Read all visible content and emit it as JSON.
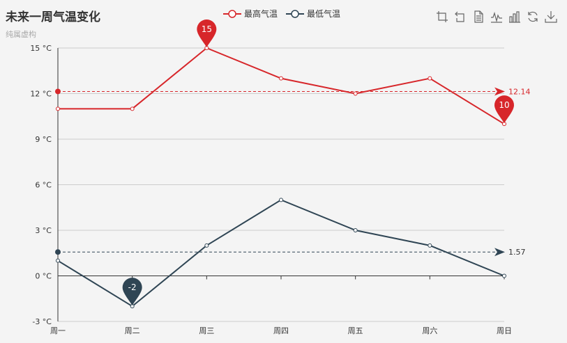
{
  "title": "未来一周气温变化",
  "subtitle": "纯属虚构",
  "toolbox": [
    "zoom-icon",
    "restore-zoom-icon",
    "data-view-icon",
    "line-chart-icon",
    "bar-chart-icon",
    "restore-icon",
    "download-icon"
  ],
  "colors": {
    "max": "#d7262a",
    "min": "#2f4554",
    "grid": "#cccccc",
    "axis": "#333333"
  },
  "chart_data": {
    "type": "line",
    "categories": [
      "周一",
      "周二",
      "周三",
      "周四",
      "周五",
      "周六",
      "周日"
    ],
    "series": [
      {
        "name": "最高气温",
        "values": [
          11,
          11,
          15,
          13,
          12,
          13,
          10
        ],
        "mark_points": [
          {
            "label": "15",
            "category": "周三",
            "value": 15
          },
          {
            "label": "10",
            "category": "周日",
            "value": 10
          }
        ],
        "mark_line": {
          "label": "12.14",
          "value": 12.14
        }
      },
      {
        "name": "最低气温",
        "values": [
          1,
          -2,
          2,
          5,
          3,
          2,
          0
        ],
        "mark_points": [
          {
            "label": "-2",
            "category": "周二",
            "value": -2
          }
        ],
        "mark_line": {
          "label": "1.57",
          "value": 1.57
        }
      }
    ],
    "y_ticks": [
      "-3 °C",
      "0 °C",
      "3 °C",
      "6 °C",
      "9 °C",
      "12 °C",
      "15 °C"
    ],
    "ylim": [
      -3,
      15
    ],
    "grid": true,
    "legend_position": "top"
  }
}
